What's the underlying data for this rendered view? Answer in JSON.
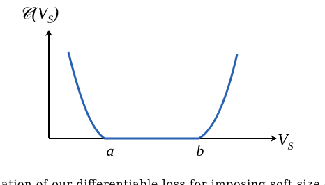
{
  "figure": {
    "y_axis_label": {
      "base": "𝒞(V",
      "sub": "S",
      "close": ")"
    },
    "x_axis_label": {
      "base": "V",
      "sub": "S"
    },
    "x_ticks": [
      "a",
      "b"
    ]
  },
  "caption": "ation of our differentiable loss for imposing soft size c"
}
